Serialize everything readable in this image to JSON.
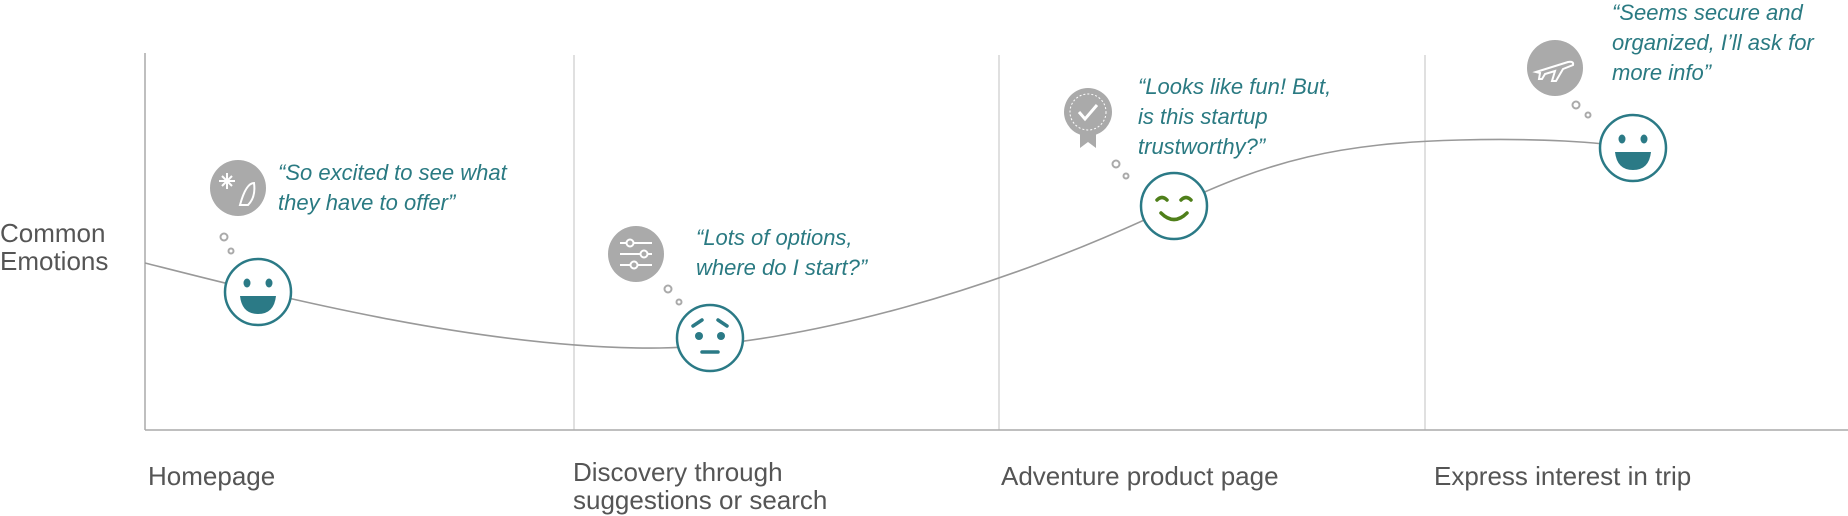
{
  "y_label": "Common Emotions",
  "stages": [
    {
      "label": "Homepage",
      "quote": "“So excited to see what they have to offer”"
    },
    {
      "label": "Discovery through suggestions or search",
      "quote": "“Lots of options, where do I start?”"
    },
    {
      "label": "Adventure product page",
      "quote": "“Looks like fun! But, is this startup trustworthy?”"
    },
    {
      "label": "Express interest in trip",
      "quote": "“Seems secure and organized, I’ll ask for more info”"
    }
  ]
}
